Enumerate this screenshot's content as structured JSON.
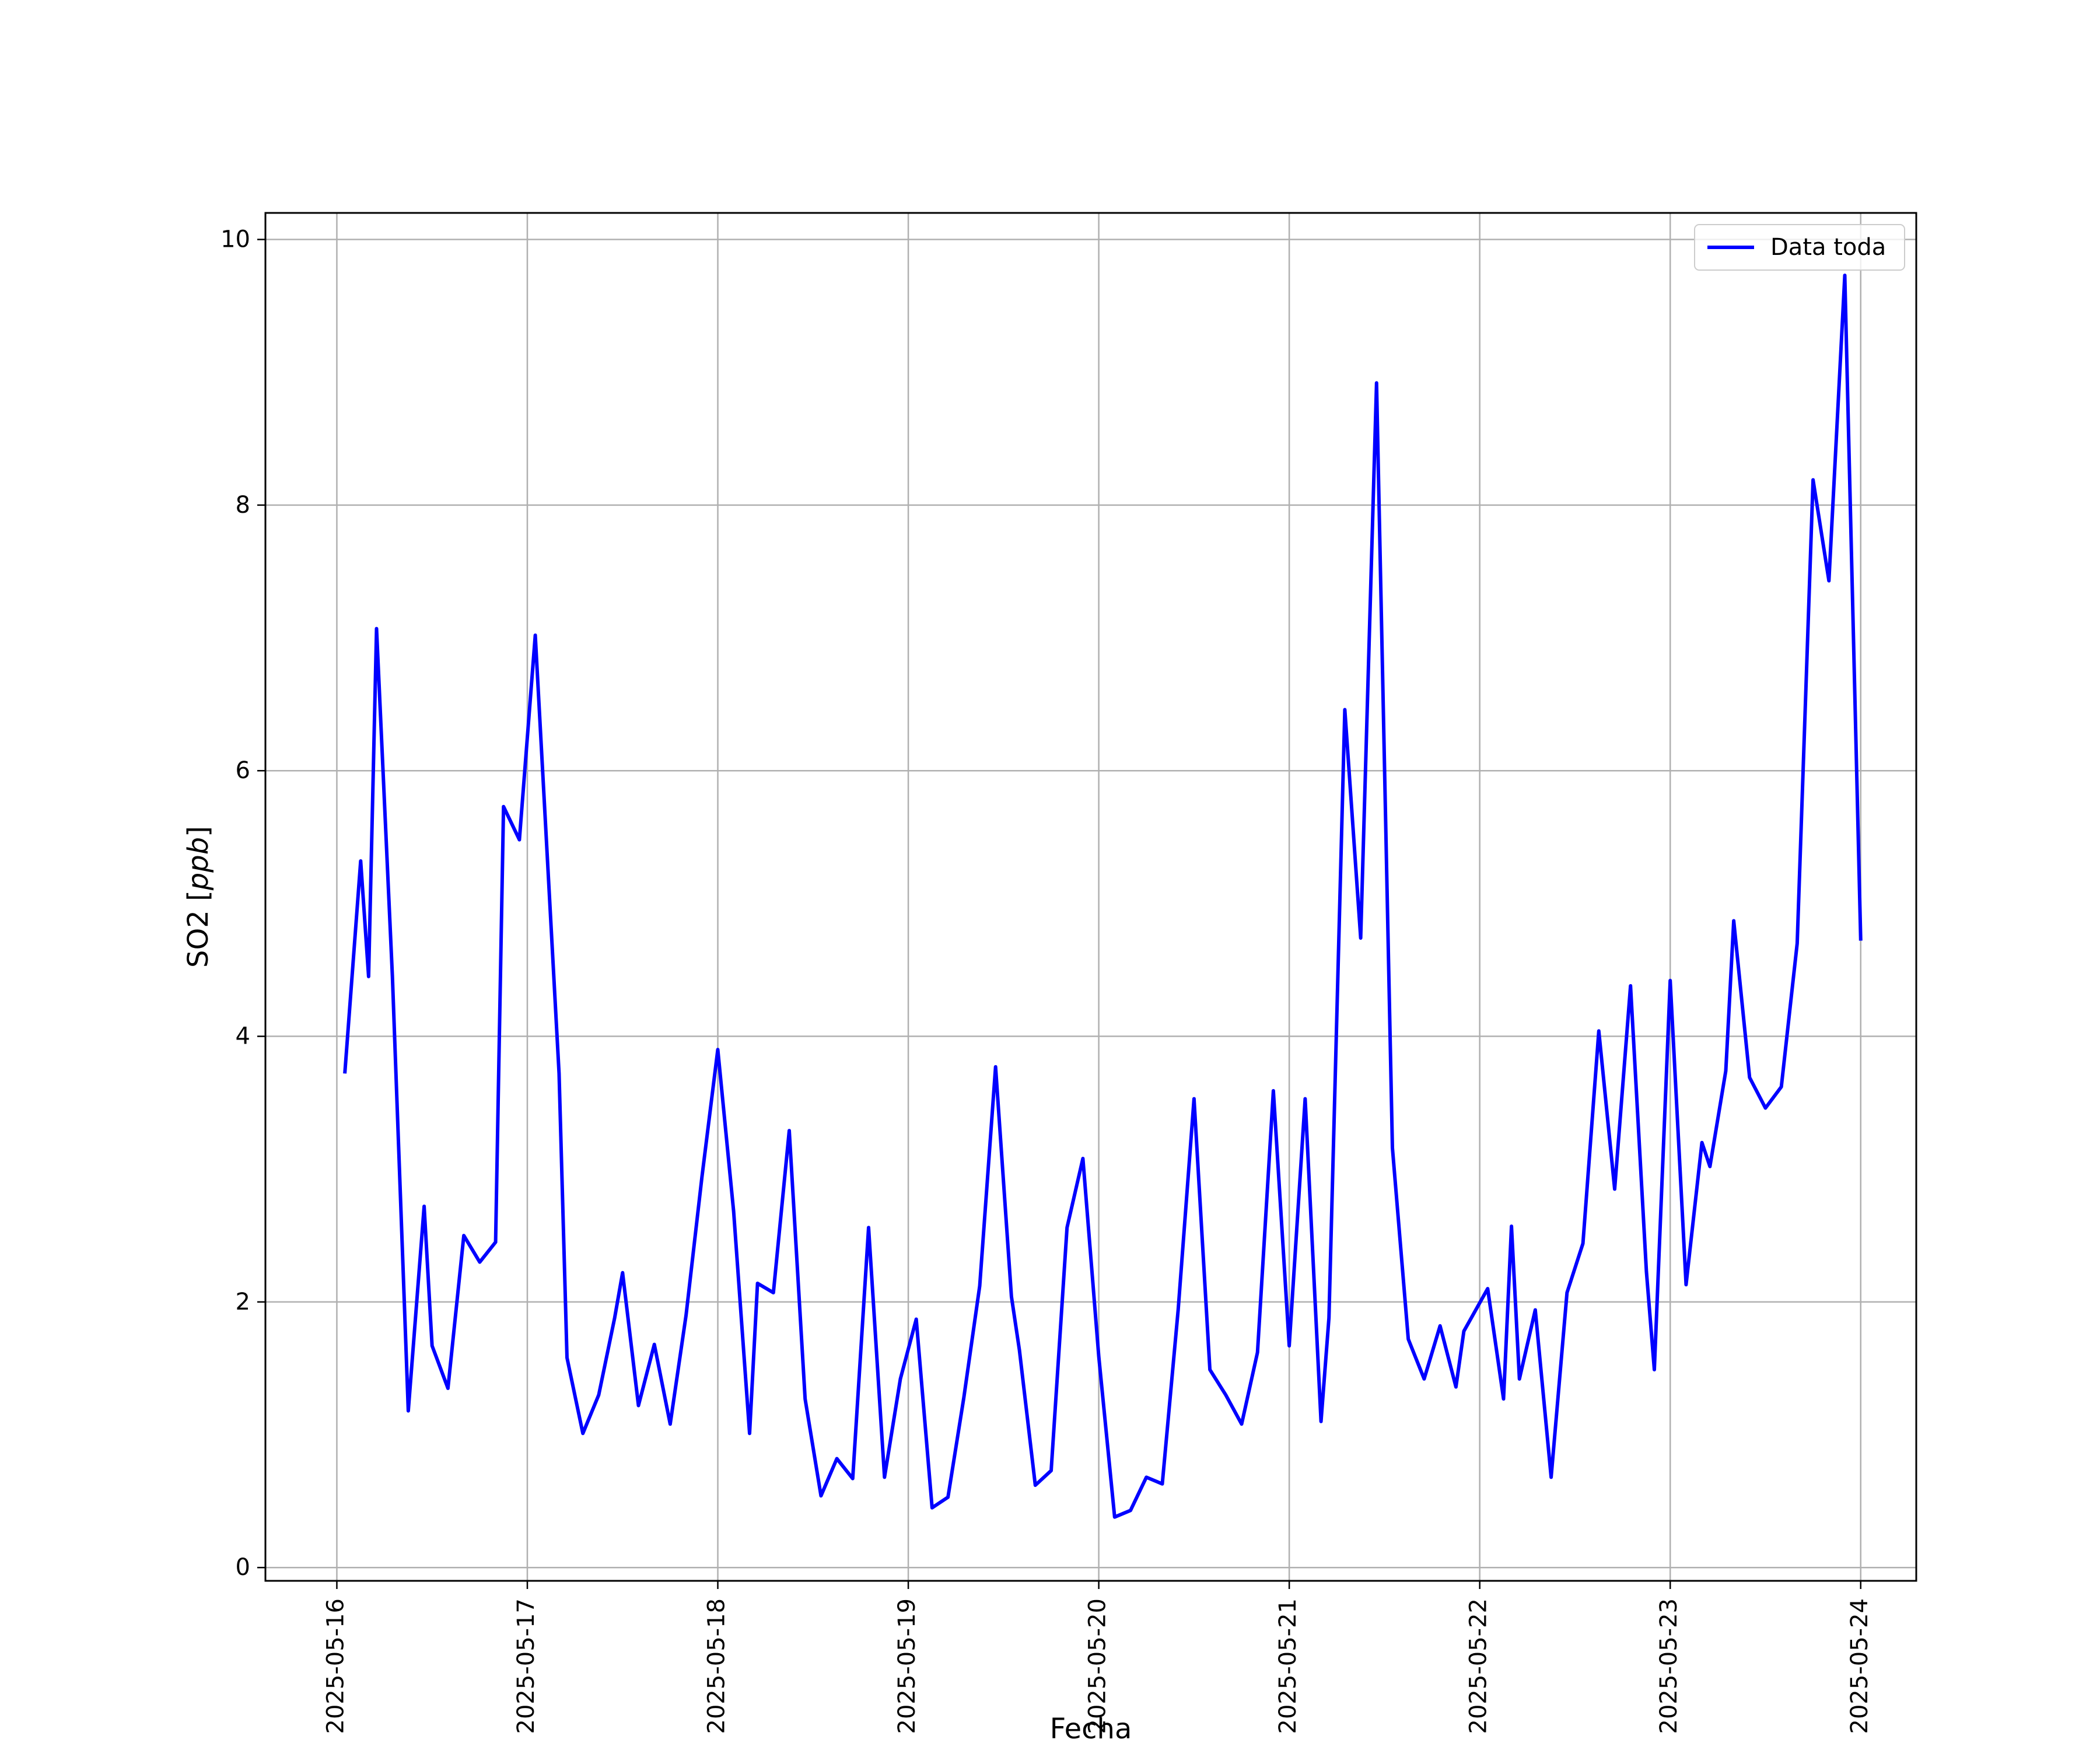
{
  "chart_data": {
    "type": "line",
    "title": "",
    "xlabel": "Fecha",
    "ylabel": "SO2 [ppb]",
    "ylabel_parts": {
      "plain": "SO2 [",
      "italic": "ppb",
      "close": "]"
    },
    "ylim": [
      -0.1,
      10.2
    ],
    "xlim": [
      "2025-05-15T15:00",
      "2025-05-24T07:00"
    ],
    "grid": true,
    "legend_position": "upper right",
    "x_ticks": [
      "2025-05-16",
      "2025-05-17",
      "2025-05-18",
      "2025-05-19",
      "2025-05-20",
      "2025-05-21",
      "2025-05-22",
      "2025-05-23",
      "2025-05-24"
    ],
    "y_ticks": [
      "0",
      "2",
      "4",
      "6",
      "8",
      "10"
    ],
    "series": [
      {
        "name": "Data toda",
        "color": "#0000ff",
        "x": [
          "2025-05-16T01:00",
          "2025-05-16T03:00",
          "2025-05-16T04:00",
          "2025-05-16T05:00",
          "2025-05-16T07:00",
          "2025-05-16T09:00",
          "2025-05-16T11:00",
          "2025-05-16T12:00",
          "2025-05-16T14:00",
          "2025-05-16T16:00",
          "2025-05-16T18:00",
          "2025-05-16T20:00",
          "2025-05-16T21:00",
          "2025-05-16T23:00",
          "2025-05-17T01:00",
          "2025-05-17T04:00",
          "2025-05-17T05:00",
          "2025-05-17T07:00",
          "2025-05-17T09:00",
          "2025-05-17T11:00",
          "2025-05-17T12:00",
          "2025-05-17T14:00",
          "2025-05-17T16:00",
          "2025-05-17T18:00",
          "2025-05-17T20:00",
          "2025-05-17T22:00",
          "2025-05-18T00:00",
          "2025-05-18T02:00",
          "2025-05-18T04:00",
          "2025-05-18T05:00",
          "2025-05-18T07:00",
          "2025-05-18T09:00",
          "2025-05-18T11:00",
          "2025-05-18T13:00",
          "2025-05-18T15:00",
          "2025-05-18T17:00",
          "2025-05-18T19:00",
          "2025-05-18T21:00",
          "2025-05-18T23:00",
          "2025-05-19T01:00",
          "2025-05-19T03:00",
          "2025-05-19T05:00",
          "2025-05-19T07:00",
          "2025-05-19T09:00",
          "2025-05-19T11:00",
          "2025-05-19T13:00",
          "2025-05-19T14:00",
          "2025-05-19T16:00",
          "2025-05-19T18:00",
          "2025-05-19T20:00",
          "2025-05-19T22:00",
          "2025-05-20T00:00",
          "2025-05-20T02:00",
          "2025-05-20T04:00",
          "2025-05-20T06:00",
          "2025-05-20T08:00",
          "2025-05-20T10:00",
          "2025-05-20T12:00",
          "2025-05-20T14:00",
          "2025-05-20T16:00",
          "2025-05-20T18:00",
          "2025-05-20T20:00",
          "2025-05-20T22:00",
          "2025-05-21T00:00",
          "2025-05-21T02:00",
          "2025-05-21T04:00",
          "2025-05-21T05:00",
          "2025-05-21T07:00",
          "2025-05-21T09:00",
          "2025-05-21T11:00",
          "2025-05-21T13:00",
          "2025-05-21T15:00",
          "2025-05-21T17:00",
          "2025-05-21T19:00",
          "2025-05-21T21:00",
          "2025-05-21T22:00",
          "2025-05-22T01:00",
          "2025-05-22T03:00",
          "2025-05-22T04:00",
          "2025-05-22T05:00",
          "2025-05-22T07:00",
          "2025-05-22T09:00",
          "2025-05-22T11:00",
          "2025-05-22T13:00",
          "2025-05-22T15:00",
          "2025-05-22T17:00",
          "2025-05-22T19:00",
          "2025-05-22T21:00",
          "2025-05-22T22:00",
          "2025-05-23T00:00",
          "2025-05-23T02:00",
          "2025-05-23T04:00",
          "2025-05-23T05:00",
          "2025-05-23T07:00",
          "2025-05-23T08:00",
          "2025-05-23T10:00",
          "2025-05-23T12:00",
          "2025-05-23T14:00",
          "2025-05-23T16:00",
          "2025-05-23T18:00",
          "2025-05-23T20:00",
          "2025-05-23T22:00",
          "2025-05-24T00:00"
        ],
        "y": [
          3.72,
          5.32,
          4.45,
          7.07,
          4.45,
          1.18,
          2.72,
          1.67,
          1.35,
          2.5,
          2.3,
          2.45,
          5.73,
          5.48,
          7.02,
          3.72,
          1.58,
          1.01,
          1.3,
          1.88,
          2.22,
          1.22,
          1.68,
          1.08,
          1.9,
          2.94,
          3.9,
          2.68,
          1.01,
          2.14,
          2.07,
          3.29,
          1.27,
          0.54,
          0.82,
          0.67,
          2.56,
          0.68,
          1.42,
          1.87,
          0.45,
          0.53,
          1.28,
          2.12,
          3.77,
          2.04,
          1.64,
          0.62,
          0.73,
          2.56,
          3.08,
          1.59,
          0.38,
          0.43,
          0.68,
          0.63,
          1.94,
          3.53,
          1.49,
          1.3,
          1.08,
          1.62,
          3.59,
          1.67,
          3.53,
          1.1,
          1.88,
          6.46,
          4.74,
          8.92,
          3.16,
          1.72,
          1.42,
          1.82,
          1.36,
          1.78,
          2.1,
          1.27,
          2.57,
          1.42,
          1.94,
          0.68,
          2.07,
          2.44,
          4.04,
          2.85,
          4.38,
          2.23,
          1.49,
          4.42,
          2.13,
          3.2,
          3.02,
          3.74,
          4.87,
          3.69,
          3.46,
          3.62,
          4.7,
          8.19,
          7.43,
          9.73,
          4.72
        ]
      }
    ]
  }
}
